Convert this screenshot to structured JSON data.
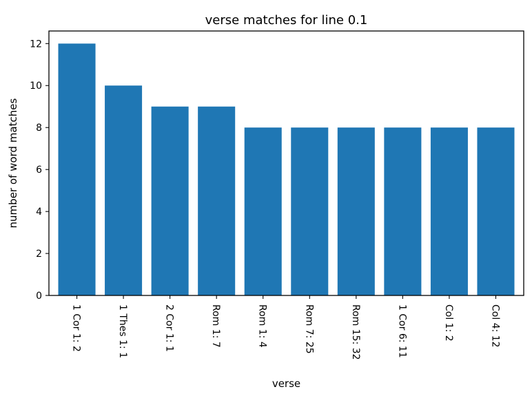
{
  "chart_data": {
    "type": "bar",
    "title": "verse matches for line 0.1",
    "xlabel": "verse",
    "ylabel": "number of word matches",
    "categories": [
      "1 Cor 1: 2",
      "1 Thes 1: 1",
      "2 Cor 1: 1",
      "Rom 1: 7",
      "Rom 1: 4",
      "Rom 7: 25",
      "Rom 15: 32",
      "1 Cor 6: 11",
      "Col 1: 2",
      "Col 4: 12"
    ],
    "values": [
      12,
      10,
      9,
      9,
      8,
      8,
      8,
      8,
      8,
      8
    ],
    "ylim": [
      0,
      12.6
    ],
    "yticks": [
      0,
      2,
      4,
      6,
      8,
      10,
      12
    ],
    "bar_color": "#1f77b4",
    "grid": false,
    "legend": "none"
  }
}
